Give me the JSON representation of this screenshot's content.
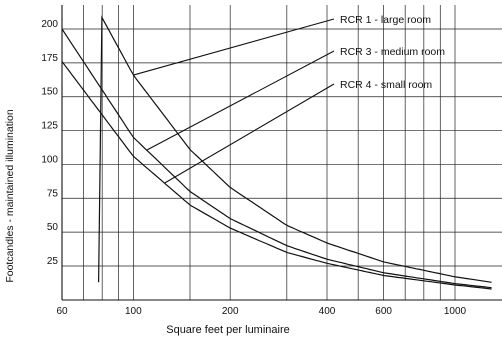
{
  "chart_data": {
    "type": "line",
    "xlabel": "Square feet per luminaire",
    "ylabel": "Footcandles - maintained illumination",
    "x_scale": "log",
    "xlim": [
      60,
      1300
    ],
    "ylim": [
      0,
      220
    ],
    "x_ticks": [
      {
        "value": 60,
        "label": "60"
      },
      {
        "value": 100,
        "label": "100"
      },
      {
        "value": 200,
        "label": "200"
      },
      {
        "value": 400,
        "label": "400"
      },
      {
        "value": 600,
        "label": "600"
      },
      {
        "value": 1000,
        "label": "1000"
      }
    ],
    "x_gridlines": [
      70,
      80,
      90,
      100,
      150,
      200,
      300,
      400,
      500,
      600,
      700,
      800,
      900,
      1000
    ],
    "y_ticks": [
      {
        "value": 25,
        "label": "25"
      },
      {
        "value": 50,
        "label": "50"
      },
      {
        "value": 75,
        "label": "75"
      },
      {
        "value": 100,
        "label": "100"
      },
      {
        "value": 125,
        "label": "125"
      },
      {
        "value": 150,
        "label": "150"
      },
      {
        "value": 175,
        "label": "175"
      },
      {
        "value": 200,
        "label": "200"
      }
    ],
    "grid": true,
    "series": [
      {
        "name": "RCR 1 - large room",
        "x": [
          78,
          100,
          150,
          200,
          300,
          400,
          600,
          1000,
          1300
        ],
        "y": [
          213,
          166,
          111,
          83,
          55,
          42,
          28,
          17,
          13
        ],
        "label_at": 100
      },
      {
        "name": "RCR 3 - medium room",
        "x": [
          60,
          100,
          150,
          200,
          300,
          400,
          600,
          1000,
          1300
        ],
        "y": [
          200,
          120,
          80,
          60,
          40,
          30,
          20,
          12,
          9
        ],
        "label_at": 110
      },
      {
        "name": "RCR 4 - small room",
        "x": [
          60,
          100,
          150,
          200,
          300,
          400,
          600,
          1000,
          1300
        ],
        "y": [
          176,
          106,
          70,
          53,
          35,
          27,
          18,
          11,
          8
        ],
        "label_at": 125
      }
    ]
  }
}
